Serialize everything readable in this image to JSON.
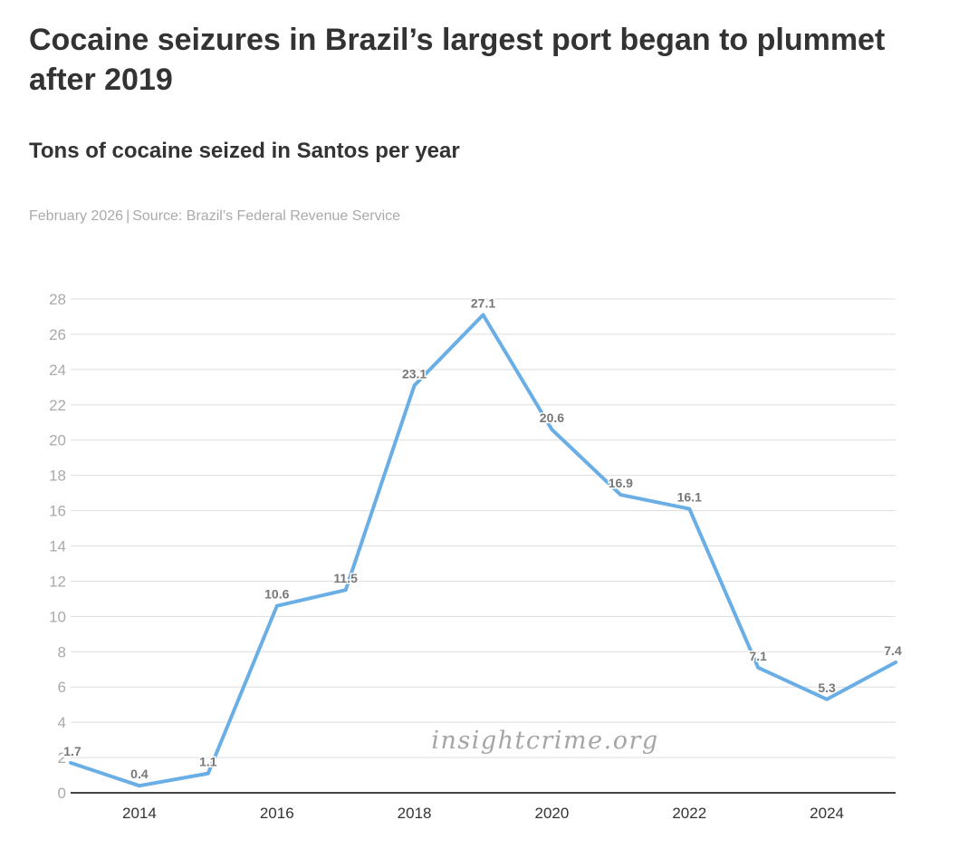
{
  "header": {
    "title": "Cocaine seizures in Brazil’s largest port began to plummet after 2019",
    "subtitle": "Tons of cocaine seized in Santos per year",
    "date": "February 2026",
    "source": "Source: Brazil’s Federal Revenue Service"
  },
  "watermark": "insightcrime.org",
  "colors": {
    "line": "#6aaee6",
    "grid": "#dddddd",
    "axis": "#444444"
  },
  "chart_data": {
    "type": "line",
    "title": "Cocaine seizures in Brazil’s largest port began to plummet after 2019",
    "subtitle": "Tons of cocaine seized in Santos per year",
    "xlabel": "",
    "ylabel": "",
    "x": [
      2013,
      2014,
      2015,
      2016,
      2017,
      2018,
      2019,
      2020,
      2021,
      2022,
      2023,
      2024,
      2025
    ],
    "values": [
      1.7,
      0.4,
      1.1,
      10.6,
      11.5,
      23.1,
      27.1,
      20.6,
      16.9,
      16.1,
      7.1,
      5.3,
      7.4
    ],
    "data_labels": [
      "1.7",
      "0.4",
      "1.1",
      "10.6",
      "11.5",
      "23.1",
      "27.1",
      "20.6",
      "16.9",
      "16.1",
      "7.1",
      "5.3",
      "7.4"
    ],
    "xlim": [
      2013,
      2025
    ],
    "ylim": [
      0,
      28
    ],
    "x_ticks": [
      "2014",
      "2016",
      "2018",
      "2020",
      "2022",
      "2024"
    ],
    "y_ticks": [
      "0",
      "2",
      "4",
      "6",
      "8",
      "10",
      "12",
      "14",
      "16",
      "18",
      "20",
      "22",
      "24",
      "26",
      "28"
    ],
    "grid": true,
    "legend": "none"
  }
}
